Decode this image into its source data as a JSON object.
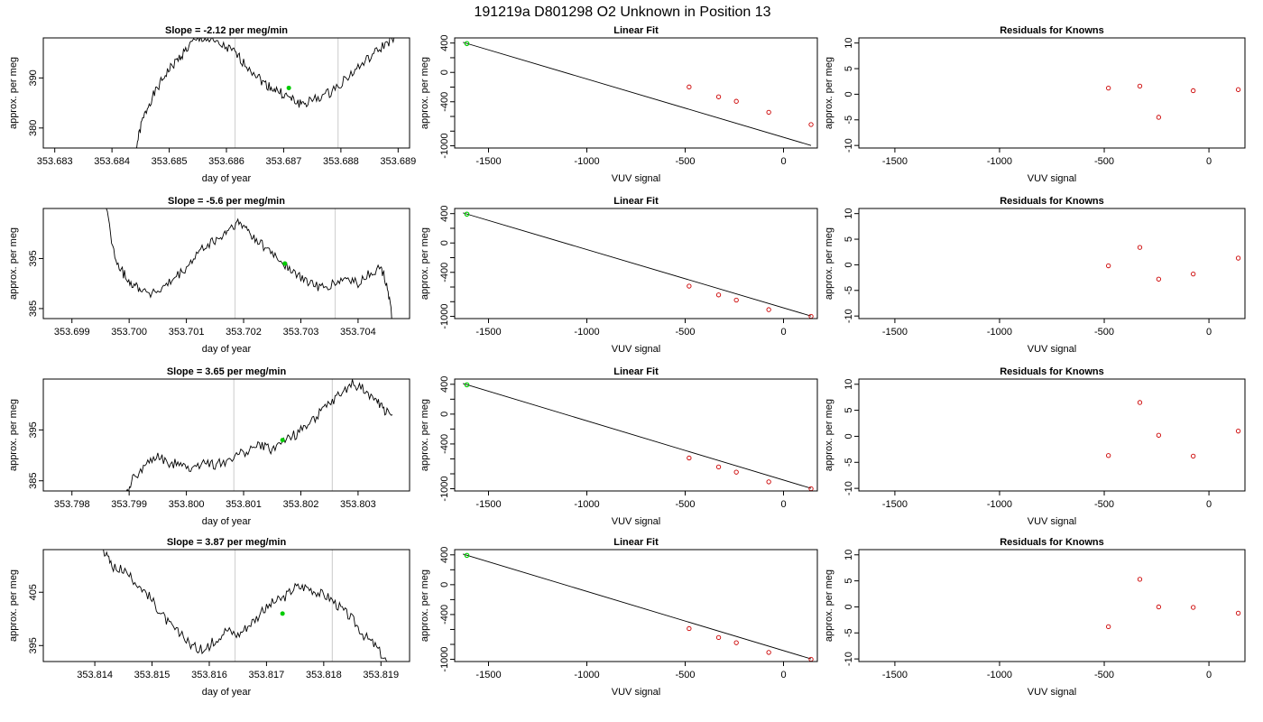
{
  "page": {
    "title": "191219a      D801298   O2 Unknown in Position  13"
  },
  "style": {
    "trace_color": "#000000",
    "box_color": "#000000",
    "vline_color": "#d3d3d3",
    "known_point_color": "#cc0000",
    "unknown_point_color": "#00cc00",
    "fit_line_color": "#000000"
  },
  "chart_data": [
    {
      "type": "line",
      "title": "Slope =  -2.12  per meg/min",
      "xlabel": "day of year",
      "ylabel": "approx. per meg",
      "xlim": [
        353.6828,
        353.6892
      ],
      "ylim": [
        376,
        398
      ],
      "xticks": [
        "353.683",
        "353.684",
        "353.685",
        "353.686",
        "353.687",
        "353.688",
        "353.689"
      ],
      "xtick_values": [
        353.683,
        353.684,
        353.685,
        353.686,
        353.687,
        353.688,
        353.689
      ],
      "yticks": [
        "380",
        "390"
      ],
      "ytick_values": [
        380,
        390
      ],
      "vlines": [
        353.68615,
        353.68795
      ],
      "marker": [
        353.68709,
        388
      ],
      "series": [
        {
          "values": [
            [
              353.68442,
              376
            ],
            [
              353.68452,
              381
            ],
            [
              353.68465,
              385
            ],
            [
              353.6848,
              388
            ],
            [
              353.68495,
              391
            ],
            [
              353.6851,
              393
            ],
            [
              353.68525,
              395
            ],
            [
              353.6854,
              397
            ],
            [
              353.6856,
              398
            ],
            [
              353.6858,
              397
            ],
            [
              353.686,
              396
            ],
            [
              353.68615,
              395
            ],
            [
              353.6863,
              393
            ],
            [
              353.6865,
              391
            ],
            [
              353.68665,
              389
            ],
            [
              353.6868,
              388
            ],
            [
              353.68695,
              387
            ],
            [
              353.6871,
              386
            ],
            [
              353.68725,
              385
            ],
            [
              353.6874,
              385
            ],
            [
              353.6876,
              386
            ],
            [
              353.6878,
              387
            ],
            [
              353.688,
              389
            ],
            [
              353.6882,
              391
            ],
            [
              353.6884,
              393
            ],
            [
              353.6886,
              395
            ],
            [
              353.6888,
              397
            ],
            [
              353.68895,
              398
            ]
          ]
        }
      ]
    },
    {
      "type": "scatter",
      "title": "Linear Fit",
      "xlabel": "VUV signal",
      "ylabel": "approx. per meg",
      "xlim": [
        -1672,
        172
      ],
      "ylim": [
        -1030,
        470
      ],
      "xticks": [
        "-1500",
        "-1000",
        "-500",
        "0"
      ],
      "xtick_values": [
        -1500,
        -1000,
        -500,
        0
      ],
      "yticks": [
        "-1000",
        "-400",
        "0",
        "400"
      ],
      "ytick_values": [
        -1000,
        -400,
        0,
        400
      ],
      "yminor_ticks": [
        -800,
        -600,
        -200,
        200
      ],
      "fit_line": [
        [
          -1630,
          410
        ],
        [
          140,
          -995
        ]
      ],
      "known_points": [
        [
          -480,
          -198
        ],
        [
          -330,
          -333
        ],
        [
          -240,
          -393
        ],
        [
          -75,
          -543
        ],
        [
          140,
          -710
        ]
      ],
      "unknown_point": [
        -1610,
        393
      ]
    },
    {
      "type": "scatter",
      "title": "Residuals for Knowns",
      "xlabel": "VUV signal",
      "ylabel": "approx. per meg",
      "xlim": [
        -1672,
        172
      ],
      "ylim": [
        -10.5,
        11
      ],
      "xticks": [
        "-1500",
        "-1000",
        "-500",
        "0"
      ],
      "xtick_values": [
        -1500,
        -1000,
        -500,
        0
      ],
      "yticks": [
        "-10",
        "-5",
        "0",
        "5",
        "10"
      ],
      "ytick_values": [
        -10,
        -5,
        0,
        5,
        10
      ],
      "known_points": [
        [
          -480,
          1.2
        ],
        [
          -330,
          1.6
        ],
        [
          -240,
          -4.5
        ],
        [
          -75,
          0.7
        ],
        [
          140,
          0.9
        ]
      ]
    },
    {
      "type": "line",
      "title": "Slope =  -5.6  per meg/min",
      "xlabel": "day of year",
      "ylabel": "approx. per meg",
      "xlim": [
        353.6985,
        353.7049
      ],
      "ylim": [
        383,
        405
      ],
      "xticks": [
        "353.699",
        "353.700",
        "353.701",
        "353.702",
        "353.703",
        "353.704"
      ],
      "xtick_values": [
        353.699,
        353.7,
        353.701,
        353.702,
        353.703,
        353.704
      ],
      "yticks": [
        "385",
        "395"
      ],
      "ytick_values": [
        385,
        395
      ],
      "vlines": [
        353.70185,
        353.7036
      ],
      "marker": [
        353.70272,
        394
      ],
      "series": [
        {
          "values": [
            [
              353.6996,
              405
            ],
            [
              353.69975,
              395
            ],
            [
              353.6999,
              392
            ],
            [
              353.70005,
              390
            ],
            [
              353.7002,
              389
            ],
            [
              353.7004,
              388
            ],
            [
              353.7006,
              389
            ],
            [
              353.7008,
              391
            ],
            [
              353.701,
              393
            ],
            [
              353.7012,
              396
            ],
            [
              353.7014,
              398
            ],
            [
              353.7016,
              399
            ],
            [
              353.70175,
              401
            ],
            [
              353.7019,
              402
            ],
            [
              353.70205,
              401
            ],
            [
              353.7022,
              399
            ],
            [
              353.7024,
              397
            ],
            [
              353.7026,
              395
            ],
            [
              353.7028,
              393
            ],
            [
              353.703,
              391
            ],
            [
              353.7032,
              390
            ],
            [
              353.7034,
              389
            ],
            [
              353.7036,
              390
            ],
            [
              353.7038,
              391
            ],
            [
              353.704,
              390
            ],
            [
              353.7042,
              392
            ],
            [
              353.7044,
              393
            ],
            [
              353.7045,
              390
            ],
            [
              353.7046,
              383
            ]
          ]
        }
      ]
    },
    {
      "type": "scatter",
      "title": "Linear Fit",
      "xlabel": "VUV signal",
      "ylabel": "approx. per meg",
      "xlim": [
        -1672,
        172
      ],
      "ylim": [
        -1030,
        470
      ],
      "xticks": [
        "-1500",
        "-1000",
        "-500",
        "0"
      ],
      "xtick_values": [
        -1500,
        -1000,
        -500,
        0
      ],
      "yticks": [
        "-1000",
        "-400",
        "0",
        "400"
      ],
      "ytick_values": [
        -1000,
        -400,
        0,
        400
      ],
      "yminor_ticks": [
        -800,
        -600,
        -200,
        200
      ],
      "fit_line": [
        [
          -1630,
          410
        ],
        [
          140,
          -995
        ]
      ],
      "known_points": [
        [
          -480,
          -588
        ],
        [
          -330,
          -708
        ],
        [
          -240,
          -778
        ],
        [
          -75,
          -908
        ],
        [
          140,
          -1000
        ]
      ],
      "unknown_point": [
        -1610,
        393
      ]
    },
    {
      "type": "scatter",
      "title": "Residuals for Knowns",
      "xlabel": "VUV signal",
      "ylabel": "approx. per meg",
      "xlim": [
        -1672,
        172
      ],
      "ylim": [
        -10.5,
        11
      ],
      "xticks": [
        "-1500",
        "-1000",
        "-500",
        "0"
      ],
      "xtick_values": [
        -1500,
        -1000,
        -500,
        0
      ],
      "yticks": [
        "-10",
        "-5",
        "0",
        "5",
        "10"
      ],
      "ytick_values": [
        -10,
        -5,
        0,
        5,
        10
      ],
      "known_points": [
        [
          -480,
          -0.2
        ],
        [
          -330,
          3.4
        ],
        [
          -240,
          -2.8
        ],
        [
          -75,
          -1.8
        ],
        [
          140,
          1.3
        ]
      ]
    },
    {
      "type": "line",
      "title": "Slope =  3.65  per meg/min",
      "xlabel": "day of year",
      "ylabel": "approx. per meg",
      "xlim": [
        353.7975,
        353.8039
      ],
      "ylim": [
        383,
        405
      ],
      "xticks": [
        "353.798",
        "353.799",
        "353.800",
        "353.801",
        "353.802",
        "353.803"
      ],
      "xtick_values": [
        353.798,
        353.799,
        353.8,
        353.801,
        353.802,
        353.803
      ],
      "yticks": [
        "385",
        "395"
      ],
      "ytick_values": [
        385,
        395
      ],
      "vlines": [
        353.80083,
        353.80255
      ],
      "marker": [
        353.80168,
        393
      ],
      "series": [
        {
          "values": [
            [
              353.79895,
              383
            ],
            [
              353.7991,
              386
            ],
            [
              353.7993,
              388
            ],
            [
              353.7995,
              390
            ],
            [
              353.7997,
              388
            ],
            [
              353.7999,
              389
            ],
            [
              353.8001,
              387
            ],
            [
              353.8003,
              389
            ],
            [
              353.8005,
              388
            ],
            [
              353.8007,
              389
            ],
            [
              353.8009,
              390
            ],
            [
              353.8011,
              391
            ],
            [
              353.8013,
              392
            ],
            [
              353.8015,
              391
            ],
            [
              353.8017,
              393
            ],
            [
              353.8019,
              394
            ],
            [
              353.8021,
              396
            ],
            [
              353.8023,
              398
            ],
            [
              353.8025,
              400
            ],
            [
              353.8027,
              402
            ],
            [
              353.8029,
              404
            ],
            [
              353.8031,
              403
            ],
            [
              353.8033,
              401
            ],
            [
              353.80345,
              399
            ],
            [
              353.8036,
              398
            ]
          ]
        }
      ]
    },
    {
      "type": "scatter",
      "title": "Linear Fit",
      "xlabel": "VUV signal",
      "ylabel": "approx. per meg",
      "xlim": [
        -1672,
        172
      ],
      "ylim": [
        -1030,
        470
      ],
      "xticks": [
        "-1500",
        "-1000",
        "-500",
        "0"
      ],
      "xtick_values": [
        -1500,
        -1000,
        -500,
        0
      ],
      "yticks": [
        "-1000",
        "-400",
        "0",
        "400"
      ],
      "ytick_values": [
        -1000,
        -400,
        0,
        400
      ],
      "yminor_ticks": [
        -800,
        -600,
        -200,
        200
      ],
      "fit_line": [
        [
          -1630,
          410
        ],
        [
          140,
          -995
        ]
      ],
      "known_points": [
        [
          -480,
          -588
        ],
        [
          -330,
          -708
        ],
        [
          -240,
          -778
        ],
        [
          -75,
          -908
        ],
        [
          140,
          -1000
        ]
      ],
      "unknown_point": [
        -1610,
        393
      ]
    },
    {
      "type": "scatter",
      "title": "Residuals for Knowns",
      "xlabel": "VUV signal",
      "ylabel": "approx. per meg",
      "xlim": [
        -1672,
        172
      ],
      "ylim": [
        -10.5,
        11
      ],
      "xticks": [
        "-1500",
        "-1000",
        "-500",
        "0"
      ],
      "xtick_values": [
        -1500,
        -1000,
        -500,
        0
      ],
      "yticks": [
        "-10",
        "-5",
        "0",
        "5",
        "10"
      ],
      "ytick_values": [
        -10,
        -5,
        0,
        5,
        10
      ],
      "known_points": [
        [
          -480,
          -3.7
        ],
        [
          -330,
          6.5
        ],
        [
          -240,
          0.2
        ],
        [
          -75,
          -3.8
        ],
        [
          140,
          1.0
        ]
      ]
    },
    {
      "type": "line",
      "title": "Slope =  3.87  per meg/min",
      "xlabel": "day of year",
      "ylabel": "approx. per meg",
      "xlim": [
        353.8131,
        353.8195
      ],
      "ylim": [
        392,
        413
      ],
      "xticks": [
        "353.814",
        "353.815",
        "353.816",
        "353.817",
        "353.818",
        "353.819"
      ],
      "xtick_values": [
        353.814,
        353.815,
        353.816,
        353.817,
        353.818,
        353.819
      ],
      "yticks": [
        "395",
        "405"
      ],
      "ytick_values": [
        395,
        405
      ],
      "vlines": [
        353.81645,
        353.81815
      ],
      "marker": [
        353.81728,
        401
      ],
      "series": [
        {
          "values": [
            [
              353.81415,
              413
            ],
            [
              353.8143,
              410
            ],
            [
              353.8145,
              409
            ],
            [
              353.8147,
              407
            ],
            [
              353.8149,
              405
            ],
            [
              353.8151,
              402
            ],
            [
              353.8153,
              399
            ],
            [
              353.8155,
              397
            ],
            [
              353.8157,
              395
            ],
            [
              353.8159,
              394
            ],
            [
              353.8161,
              396
            ],
            [
              353.8163,
              398
            ],
            [
              353.8165,
              397
            ],
            [
              353.8167,
              399
            ],
            [
              353.8169,
              401
            ],
            [
              353.8171,
              403
            ],
            [
              353.8173,
              404
            ],
            [
              353.8175,
              406
            ],
            [
              353.8177,
              406
            ],
            [
              353.8179,
              405
            ],
            [
              353.8181,
              404
            ],
            [
              353.8183,
              402
            ],
            [
              353.8185,
              400
            ],
            [
              353.8187,
              397
            ],
            [
              353.8189,
              395
            ],
            [
              353.8191,
              392
            ]
          ]
        }
      ]
    },
    {
      "type": "scatter",
      "title": "Linear Fit",
      "xlabel": "VUV signal",
      "ylabel": "approx. per meg",
      "xlim": [
        -1672,
        172
      ],
      "ylim": [
        -1030,
        470
      ],
      "xticks": [
        "-1500",
        "-1000",
        "-500",
        "0"
      ],
      "xtick_values": [
        -1500,
        -1000,
        -500,
        0
      ],
      "yticks": [
        "-1000",
        "-400",
        "0",
        "400"
      ],
      "ytick_values": [
        -1000,
        -400,
        0,
        400
      ],
      "yminor_ticks": [
        -800,
        -600,
        -200,
        200
      ],
      "fit_line": [
        [
          -1630,
          410
        ],
        [
          140,
          -995
        ]
      ],
      "known_points": [
        [
          -480,
          -588
        ],
        [
          -330,
          -708
        ],
        [
          -240,
          -778
        ],
        [
          -75,
          -908
        ],
        [
          140,
          -1000
        ]
      ],
      "unknown_point": [
        -1610,
        393
      ]
    },
    {
      "type": "scatter",
      "title": "Residuals for Knowns",
      "xlabel": "VUV signal",
      "ylabel": "approx. per meg",
      "xlim": [
        -1672,
        172
      ],
      "ylim": [
        -10.5,
        11
      ],
      "xticks": [
        "-1500",
        "-1000",
        "-500",
        "0"
      ],
      "xtick_values": [
        -1500,
        -1000,
        -500,
        0
      ],
      "yticks": [
        "-10",
        "-5",
        "0",
        "5",
        "10"
      ],
      "ytick_values": [
        -10,
        -5,
        0,
        5,
        10
      ],
      "known_points": [
        [
          -480,
          -3.8
        ],
        [
          -330,
          5.3
        ],
        [
          -240,
          0.0
        ],
        [
          -75,
          -0.1
        ],
        [
          140,
          -1.2
        ]
      ]
    }
  ]
}
